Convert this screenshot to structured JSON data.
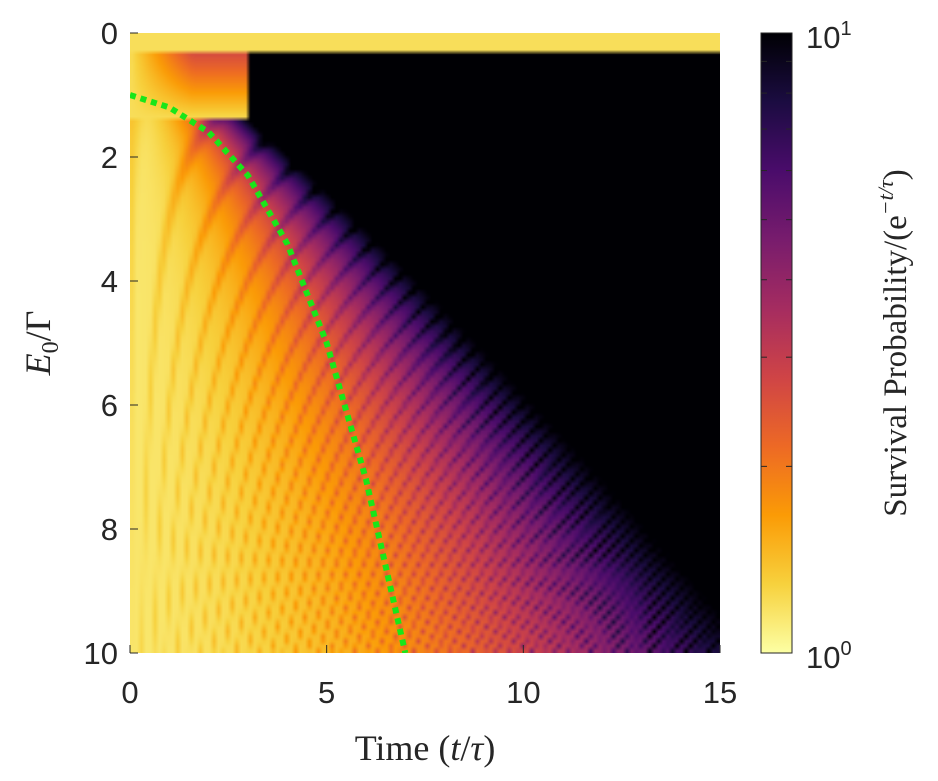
{
  "chart_data": {
    "type": "heatmap",
    "title": "",
    "xlabel": {
      "main": "Time (",
      "var": "t",
      "sep": "/",
      "var2": "τ",
      "close": ")"
    },
    "ylabel": {
      "var": "E",
      "sub": "0",
      "rest": "/Γ"
    },
    "xlim": [
      0,
      15
    ],
    "ylim": [
      10,
      0
    ],
    "y_axis_reversed": true,
    "x_ticks": [
      "0",
      "5",
      "10",
      "15"
    ],
    "y_ticks": [
      "0",
      "2",
      "4",
      "6",
      "8",
      "10"
    ],
    "colorbar": {
      "label": "Survival Probability/(e",
      "label_sup": "−t/τ",
      "label_close": ")",
      "scale": "log",
      "range": [
        1,
        10
      ],
      "tick_labels": [
        {
          "base": "10",
          "exp": "0"
        },
        {
          "base": "10",
          "exp": "1"
        }
      ],
      "colormap": "inferno",
      "colors": [
        "#fcffa4",
        "#f7d13d",
        "#fb9b06",
        "#ed6925",
        "#cf4446",
        "#a52c60",
        "#781c6d",
        "#4a0c6b",
        "#1b0c41",
        "#000004"
      ]
    },
    "heatmap_description": "Survival probability divided by exp(-t/tau) over time (0–15) and E0/Gamma (0–10); values near 1 (pale yellow) at small t and large E0, growing to >=10 (black) for small E0 at late times, with oscillating fringes whose period shrinks with E0.",
    "curve": {
      "name": "",
      "color": "#19e619",
      "style": "dotted",
      "points": [
        [
          0.0,
          1.0
        ],
        [
          1.0,
          1.2
        ],
        [
          2.0,
          1.6
        ],
        [
          3.0,
          2.3
        ],
        [
          4.0,
          3.4
        ],
        [
          5.0,
          5.0
        ],
        [
          6.0,
          7.2
        ],
        [
          7.0,
          10.0
        ]
      ]
    }
  }
}
